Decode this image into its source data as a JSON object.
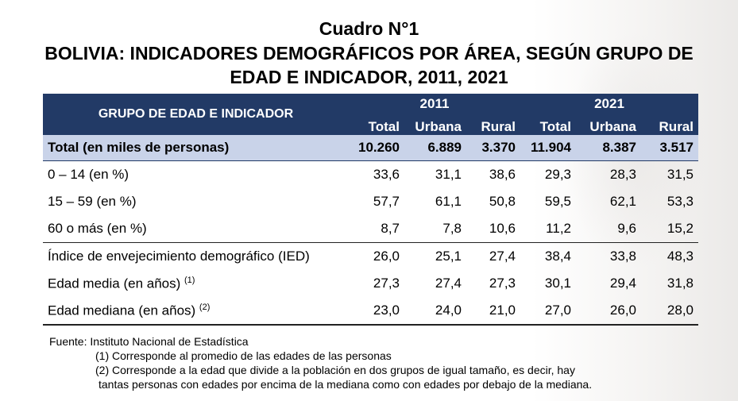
{
  "title": {
    "line1": "Cuadro N°1",
    "line2": "BOLIVIA: INDICADORES DEMOGRÁFICOS POR ÁREA, SEGÚN GRUPO DE",
    "line3": "EDAD E INDICADOR, 2011, 2021"
  },
  "table": {
    "header_label": "GRUPO DE EDAD E INDICADOR",
    "years": [
      "2011",
      "2021"
    ],
    "subheaders": [
      "Total",
      "Urbana",
      "Rural",
      "Total",
      "Urbana",
      "Rural"
    ],
    "rows": [
      {
        "label": "Total (en miles de personas)",
        "values": [
          "10.260",
          "6.889",
          "3.370",
          "11.904",
          "8.387",
          "3.517"
        ]
      },
      {
        "label": "0 – 14 (en %)",
        "values": [
          "33,6",
          "31,1",
          "38,6",
          "29,3",
          "28,3",
          "31,5"
        ]
      },
      {
        "label": "15 – 59 (en %)",
        "values": [
          "57,7",
          "61,1",
          "50,8",
          "59,5",
          "62,1",
          "53,3"
        ]
      },
      {
        "label": "60 o más (en %)",
        "values": [
          "8,7",
          "7,8",
          "10,6",
          "11,2",
          "9,6",
          "15,2"
        ]
      },
      {
        "label": "Índice de envejecimiento demográfico (IED)",
        "values": [
          "26,0",
          "25,1",
          "27,4",
          "38,4",
          "33,8",
          "48,3"
        ]
      },
      {
        "label": "Edad media (en años)",
        "sup": "(1)",
        "values": [
          "27,3",
          "27,4",
          "27,3",
          "30,1",
          "29,4",
          "31,8"
        ]
      },
      {
        "label": "Edad mediana (en años)",
        "sup": "(2)",
        "values": [
          "23,0",
          "24,0",
          "21,0",
          "27,0",
          "26,0",
          "28,0"
        ]
      }
    ]
  },
  "notes": {
    "source": "Fuente: Instituto Nacional de Estadística",
    "note1": "(1) Corresponde al promedio de las edades de las personas",
    "note2a": "(2) Corresponde a la edad que divide a la población en dos grupos de igual tamaño, es decir, hay",
    "note2b": "tantas personas con edades por encima de la mediana como con edades por debajo de la mediana."
  }
}
